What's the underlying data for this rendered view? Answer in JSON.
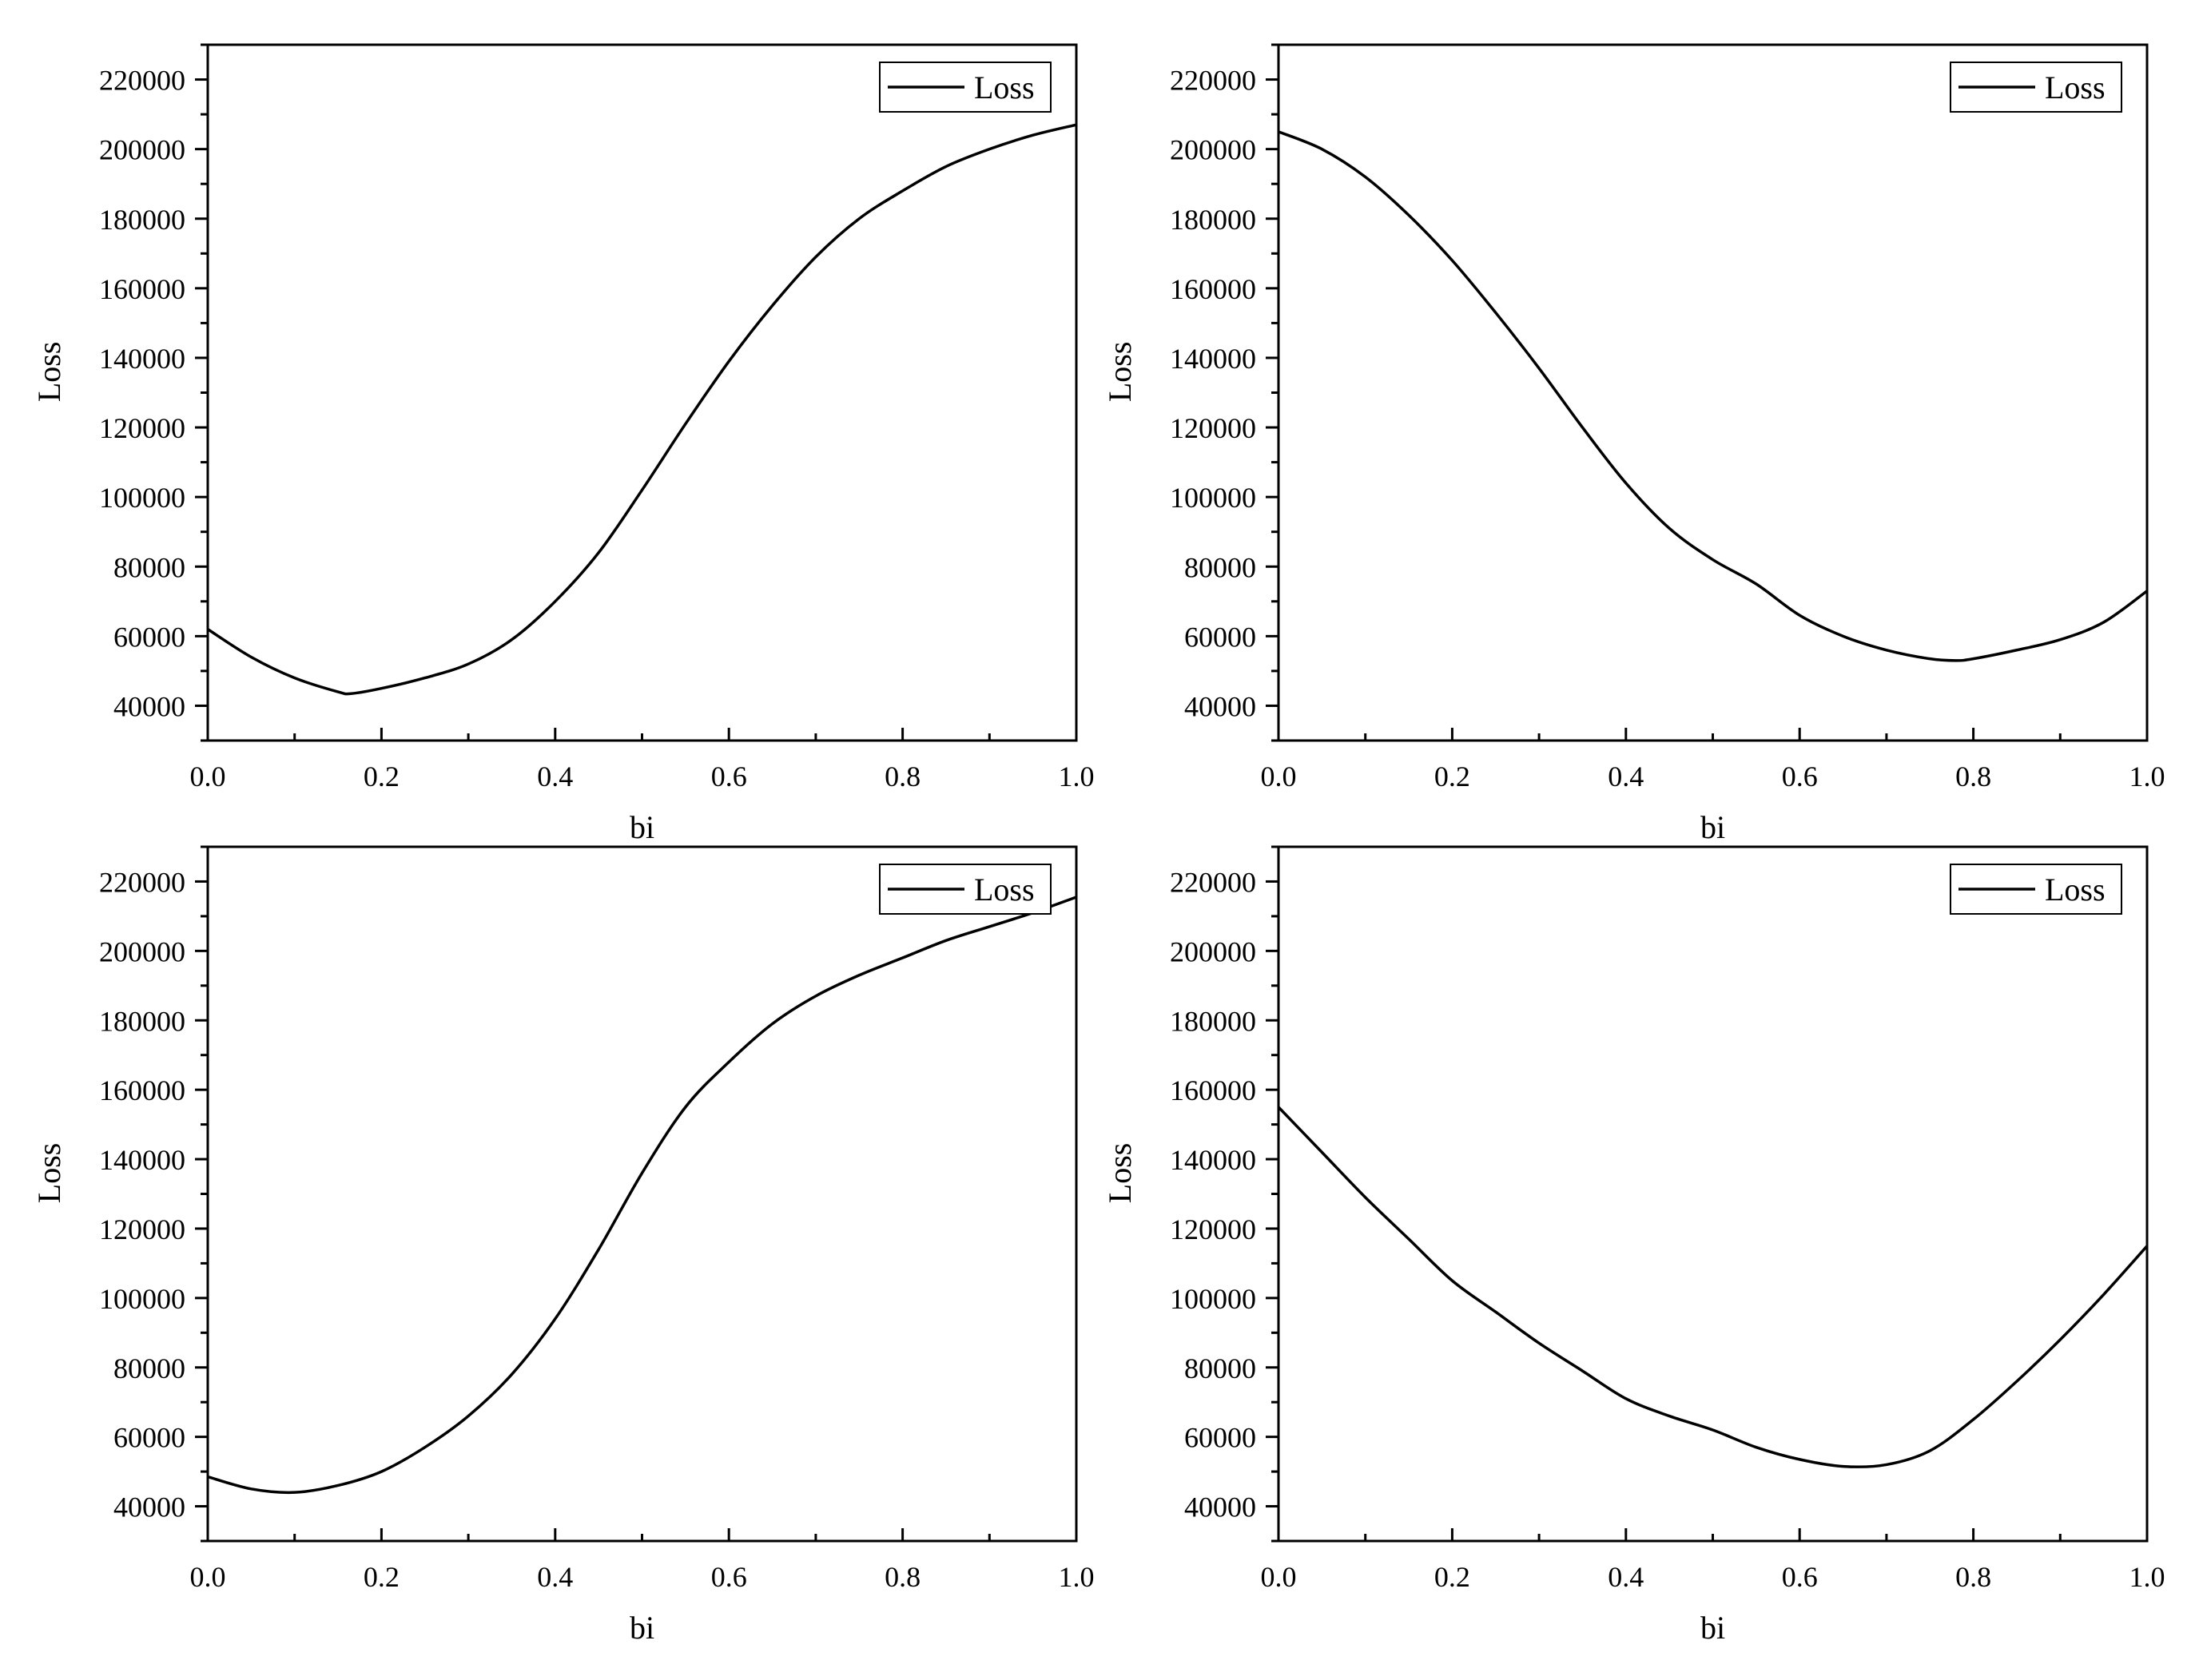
{
  "chart_data": [
    {
      "type": "line",
      "xlabel": "bi",
      "ylabel": "Loss",
      "xlim": [
        0,
        1.0
      ],
      "ylim": [
        30000,
        230000
      ],
      "xticks": [
        "0.0",
        "0.2",
        "0.4",
        "0.6",
        "0.8",
        "1.0"
      ],
      "yticks": [
        "40000",
        "60000",
        "80000",
        "100000",
        "120000",
        "140000",
        "160000",
        "180000",
        "200000",
        "220000"
      ],
      "legend_position": "top-right",
      "series": [
        {
          "name": "Loss",
          "x": [
            0.0,
            0.05,
            0.1,
            0.15,
            0.165,
            0.2,
            0.25,
            0.3,
            0.35,
            0.4,
            0.45,
            0.5,
            0.55,
            0.6,
            0.65,
            0.7,
            0.75,
            0.8,
            0.85,
            0.9,
            0.95,
            1.0
          ],
          "y": [
            62000,
            54000,
            48000,
            44000,
            43500,
            45000,
            48000,
            52000,
            59000,
            70000,
            84000,
            102000,
            121000,
            139000,
            155000,
            169000,
            180000,
            188000,
            195000,
            200000,
            204000,
            207000
          ]
        }
      ]
    },
    {
      "type": "line",
      "xlabel": "bi",
      "ylabel": "Loss",
      "xlim": [
        0,
        1.0
      ],
      "ylim": [
        30000,
        230000
      ],
      "xticks": [
        "0.0",
        "0.2",
        "0.4",
        "0.6",
        "0.8",
        "1.0"
      ],
      "yticks": [
        "40000",
        "60000",
        "80000",
        "100000",
        "120000",
        "140000",
        "160000",
        "180000",
        "200000",
        "220000"
      ],
      "legend_position": "top-right",
      "series": [
        {
          "name": "Loss",
          "x": [
            0.0,
            0.05,
            0.1,
            0.15,
            0.2,
            0.25,
            0.3,
            0.35,
            0.4,
            0.45,
            0.5,
            0.55,
            0.6,
            0.65,
            0.7,
            0.75,
            0.78,
            0.8,
            0.85,
            0.9,
            0.95,
            1.0
          ],
          "y": [
            205000,
            200000,
            192000,
            181000,
            168000,
            153000,
            137000,
            120000,
            104000,
            91000,
            82000,
            75000,
            66000,
            60000,
            56000,
            53500,
            53000,
            53500,
            56000,
            59000,
            64000,
            73000
          ]
        }
      ]
    },
    {
      "type": "line",
      "xlabel": "bi",
      "ylabel": "Loss",
      "xlim": [
        0,
        1.0
      ],
      "ylim": [
        30000,
        230000
      ],
      "xticks": [
        "0.0",
        "0.2",
        "0.4",
        "0.6",
        "0.8",
        "1.0"
      ],
      "yticks": [
        "40000",
        "60000",
        "80000",
        "100000",
        "120000",
        "140000",
        "160000",
        "180000",
        "200000",
        "220000"
      ],
      "legend_position": "top-right",
      "series": [
        {
          "name": "Loss",
          "x": [
            0.0,
            0.05,
            0.1,
            0.15,
            0.2,
            0.25,
            0.3,
            0.35,
            0.4,
            0.45,
            0.5,
            0.55,
            0.6,
            0.65,
            0.7,
            0.75,
            0.8,
            0.85,
            0.9,
            0.95,
            1.0
          ],
          "y": [
            48500,
            45000,
            44000,
            46000,
            50000,
            57000,
            66000,
            78000,
            94000,
            114000,
            136000,
            155000,
            168000,
            179000,
            187000,
            193000,
            198000,
            203000,
            207000,
            211000,
            215500
          ]
        }
      ]
    },
    {
      "type": "line",
      "xlabel": "bi",
      "ylabel": "Loss",
      "xlim": [
        0,
        1.0
      ],
      "ylim": [
        30000,
        230000
      ],
      "xticks": [
        "0.0",
        "0.2",
        "0.4",
        "0.6",
        "0.8",
        "1.0"
      ],
      "yticks": [
        "40000",
        "60000",
        "80000",
        "100000",
        "120000",
        "140000",
        "160000",
        "180000",
        "200000",
        "220000"
      ],
      "legend_position": "top-right",
      "series": [
        {
          "name": "Loss",
          "x": [
            0.0,
            0.05,
            0.1,
            0.15,
            0.2,
            0.25,
            0.3,
            0.35,
            0.4,
            0.45,
            0.5,
            0.55,
            0.6,
            0.65,
            0.7,
            0.75,
            0.8,
            0.85,
            0.9,
            0.95,
            1.0
          ],
          "y": [
            155000,
            142000,
            129000,
            117000,
            105000,
            96000,
            87000,
            79000,
            71000,
            66000,
            62000,
            57000,
            53500,
            51500,
            52000,
            56000,
            65000,
            76000,
            88000,
            101000,
            115000
          ]
        }
      ]
    }
  ]
}
